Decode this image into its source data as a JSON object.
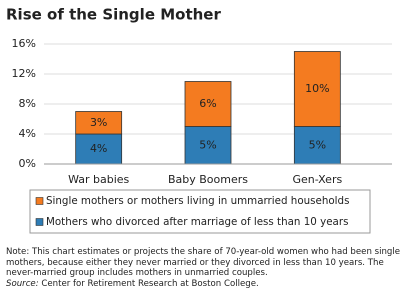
{
  "chart_data": {
    "type": "stacked_bar",
    "title": "Rise of the Single Mother",
    "categories": [
      "War babies",
      "Baby Boomers",
      "Gen-Xers"
    ],
    "series": [
      {
        "name": "Mothers who divorced after marriage of less than 10 years",
        "color": "#2e7db6",
        "values": [
          4,
          5,
          5
        ],
        "value_labels": [
          "4%",
          "5%",
          "5%"
        ]
      },
      {
        "name": "Single mothers or mothers living in ummarried households",
        "color": "#f47b20",
        "values": [
          3,
          6,
          10
        ],
        "value_labels": [
          "3%",
          "6%",
          "10%"
        ]
      }
    ],
    "ylim": [
      0,
      16
    ],
    "yticks": [
      {
        "value": 0,
        "label": "0%"
      },
      {
        "value": 4,
        "label": "4%"
      },
      {
        "value": 8,
        "label": "8%"
      },
      {
        "value": 12,
        "label": "12%"
      },
      {
        "value": 16,
        "label": "16%"
      }
    ],
    "grid": true,
    "note": "Note: This chart estimates or projects the share of 70-year-old women who had been single mothers, because either they never married or they divorced in less than 10 years.  The never-married group includes mothers in unmarried couples.",
    "source_label": "Source:",
    "source": "Center for Retirement Research at Boston College."
  }
}
